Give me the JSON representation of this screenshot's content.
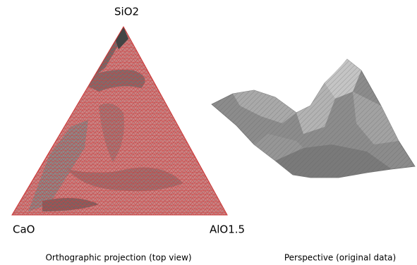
{
  "labels": {
    "top_vertex": "SiO2",
    "left_vertex": "CaO",
    "right_vertex": "AlO1.5"
  },
  "captions": {
    "left": "Orthographic projection (top view)",
    "right": "Perspective (original data)"
  }
}
